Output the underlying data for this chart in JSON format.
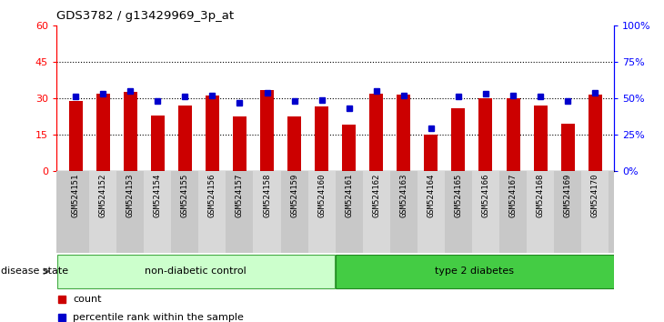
{
  "title": "GDS3782 / g13429969_3p_at",
  "samples": [
    "GSM524151",
    "GSM524152",
    "GSM524153",
    "GSM524154",
    "GSM524155",
    "GSM524156",
    "GSM524157",
    "GSM524158",
    "GSM524159",
    "GSM524160",
    "GSM524161",
    "GSM524162",
    "GSM524163",
    "GSM524164",
    "GSM524165",
    "GSM524166",
    "GSM524167",
    "GSM524168",
    "GSM524169",
    "GSM524170"
  ],
  "counts": [
    29.0,
    32.0,
    32.5,
    23.0,
    27.0,
    31.0,
    22.5,
    33.5,
    22.5,
    26.5,
    19.0,
    32.0,
    31.5,
    15.0,
    26.0,
    30.0,
    30.0,
    27.0,
    19.5,
    31.5
  ],
  "percentiles": [
    51,
    53,
    55,
    48,
    51,
    52,
    47,
    54,
    48,
    49,
    43,
    55,
    52,
    29,
    51,
    53,
    52,
    51,
    48,
    54
  ],
  "group1_label": "non-diabetic control",
  "group2_label": "type 2 diabetes",
  "group1_count": 10,
  "group2_count": 10,
  "ylim_left": [
    0,
    60
  ],
  "ylim_right": [
    0,
    100
  ],
  "yticks_left": [
    0,
    15,
    30,
    45,
    60
  ],
  "yticks_right": [
    0,
    25,
    50,
    75,
    100
  ],
  "bar_color": "#cc0000",
  "marker_color": "#0000cc",
  "sample_bg": "#c8c8c8",
  "group1_bg": "#ccffcc",
  "group2_bg": "#44cc44",
  "legend_count_label": "count",
  "legend_pct_label": "percentile rank within the sample",
  "disease_state_label": "disease state"
}
